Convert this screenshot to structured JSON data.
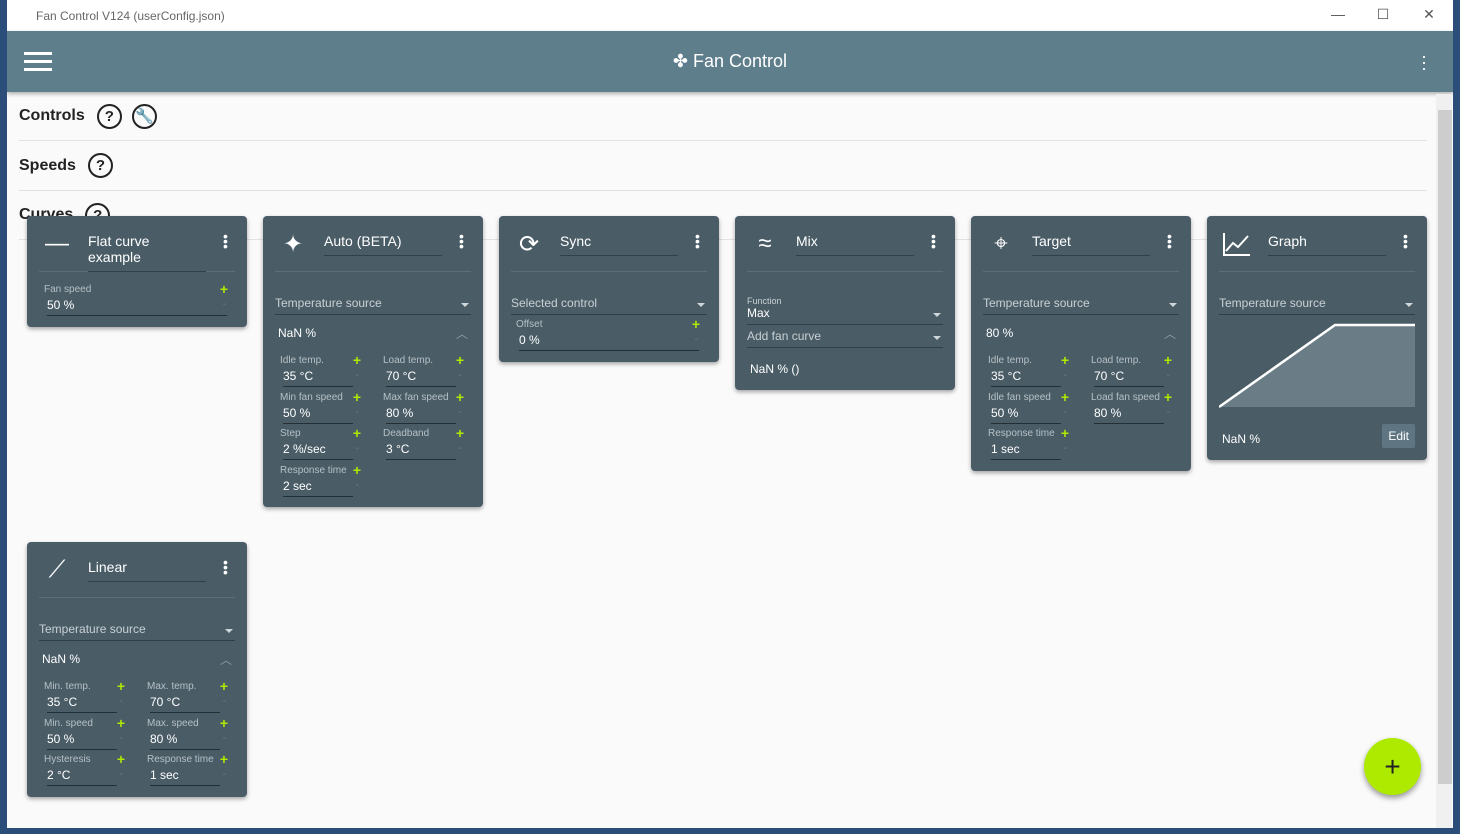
{
  "window": {
    "title": "Fan Control V124 (userConfig.json)",
    "minimize": "—",
    "maximize": "☐",
    "close": "✕"
  },
  "appbar": {
    "title": "Fan Control",
    "icon": "fan-icon",
    "menu_icon": "hamburger-icon"
  },
  "sections": [
    {
      "label": "Controls",
      "icons": [
        "help-icon",
        "wrench-icon"
      ]
    },
    {
      "label": "Speeds",
      "icons": [
        "help-icon"
      ]
    },
    {
      "label": "Curves",
      "icons": [
        "help-icon"
      ]
    }
  ],
  "accent": "#aeea00",
  "card_color": "#4a5d67",
  "header_color": "#5f7e8c",
  "fab": {
    "label": "+"
  },
  "cards": [
    {
      "title": "Flat curve example",
      "icon": "minus-icon",
      "body": [
        {
          "type": "fields",
          "wide": true,
          "fields": [
            {
              "label": "Fan speed",
              "value": "50 %"
            }
          ]
        }
      ]
    },
    {
      "title": "Auto (BETA)",
      "icon": "sparkle-icon",
      "body": [
        {
          "type": "select",
          "value": "Temperature source"
        },
        {
          "type": "expander",
          "value": "NaN %"
        },
        {
          "type": "fields",
          "fields": [
            {
              "label": "Idle temp.",
              "value": "35 °C"
            },
            {
              "label": "Load temp.",
              "value": "70 °C"
            },
            {
              "label": "Min fan speed",
              "value": "50 %"
            },
            {
              "label": "Max fan speed",
              "value": "80 %"
            },
            {
              "label": "Step",
              "value": "2 %/sec"
            },
            {
              "label": "Deadband",
              "value": "3 °C"
            },
            {
              "label": "Response time",
              "value": "2 sec"
            }
          ]
        }
      ]
    },
    {
      "title": "Sync",
      "icon": "sync-icon",
      "body": [
        {
          "type": "select",
          "value": "Selected control"
        },
        {
          "type": "fields",
          "wide": true,
          "fields": [
            {
              "label": "Offset",
              "value": "0 %"
            }
          ]
        }
      ]
    },
    {
      "title": "Mix",
      "icon": "mix-icon",
      "body": [
        {
          "type": "select",
          "label": "Function",
          "value": "Max"
        },
        {
          "type": "select",
          "value": "Add fan curve"
        },
        {
          "type": "text",
          "value": "NaN % ()"
        }
      ]
    },
    {
      "title": "Target",
      "icon": "crosshair-icon",
      "body": [
        {
          "type": "select",
          "value": "Temperature source"
        },
        {
          "type": "expander",
          "value": "80 %"
        },
        {
          "type": "fields",
          "fields": [
            {
              "label": "Idle temp.",
              "value": "35 °C"
            },
            {
              "label": "Load temp.",
              "value": "70 °C"
            },
            {
              "label": "Idle fan speed",
              "value": "50 %"
            },
            {
              "label": "Load fan speed",
              "value": "80 %"
            },
            {
              "label": "Response time",
              "value": "1 sec"
            }
          ]
        }
      ]
    },
    {
      "title": "Graph",
      "icon": "chart-icon",
      "body": [
        {
          "type": "select",
          "value": "Temperature source"
        },
        {
          "type": "graph"
        },
        {
          "type": "text",
          "value": "NaN %"
        }
      ],
      "edit": "Edit"
    },
    {
      "title": "Linear",
      "icon": "linear-icon",
      "body": [
        {
          "type": "select",
          "value": "Temperature source"
        },
        {
          "type": "expander",
          "value": "NaN %"
        },
        {
          "type": "fields",
          "fields": [
            {
              "label": "Min. temp.",
              "value": "35 °C"
            },
            {
              "label": "Max. temp.",
              "value": "70 °C"
            },
            {
              "label": "Min. speed",
              "value": "50 %"
            },
            {
              "label": "Max. speed",
              "value": "80 %"
            },
            {
              "label": "Hysteresis",
              "value": "2 °C"
            },
            {
              "label": "Response time",
              "value": "1 sec"
            }
          ]
        }
      ]
    }
  ]
}
